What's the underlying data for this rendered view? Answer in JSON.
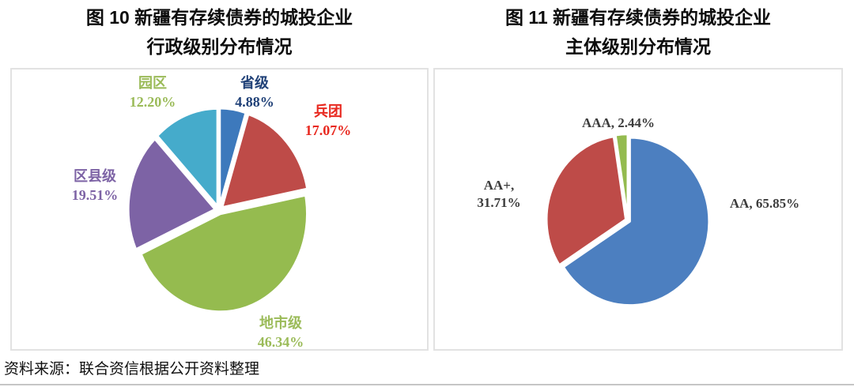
{
  "page": {
    "source": "资料来源：联合资信根据公开资料整理"
  },
  "charts": [
    {
      "title_line1": "图 10 新疆有存续债券的城投企业",
      "title_line2": "行政级别分布情况",
      "callouts": [
        {
          "line1": "园区",
          "line2": "12.20%",
          "color": "#9bbb59"
        },
        {
          "line1": "省级",
          "line2": "4.88%",
          "color": "#1f4077"
        },
        {
          "line1": "兵团",
          "line2": "17.07%",
          "color": "#e8281f"
        },
        {
          "line1": "区县级",
          "line2": "19.51%",
          "color": "#7d63a5"
        },
        {
          "line1": "地市级",
          "line2": "46.34%",
          "color": "#9bbb59"
        }
      ]
    },
    {
      "title_line1": "图 11 新疆有存续债券的城投企业",
      "title_line2": "主体级别分布情况",
      "callouts": [
        {
          "line1": "AAA, 2.44%",
          "line2": ""
        },
        {
          "line1": "AA+,",
          "line2": "31.71%"
        },
        {
          "line1": "AA, 65.85%",
          "line2": ""
        }
      ]
    }
  ],
  "chart_data": [
    {
      "type": "pie",
      "title": "图 10 新疆有存续债券的城投企业行政级别分布情况",
      "labels": [
        "省级",
        "兵团",
        "地市级",
        "区县级",
        "园区"
      ],
      "values": [
        4.88,
        17.07,
        46.34,
        19.51,
        12.2
      ],
      "colors": [
        "#3d79bc",
        "#be4b48",
        "#95bb4f",
        "#7d63a5",
        "#45abcb"
      ],
      "units": "percent",
      "start_angle_deg": 0,
      "direction": "clockwise",
      "legend": "none",
      "label_style": "callouts-outside"
    },
    {
      "type": "pie",
      "title": "图 11 新疆有存续债券的城投企业主体级别分布情况",
      "labels": [
        "AA",
        "AA+",
        "AAA"
      ],
      "values": [
        65.85,
        31.71,
        2.44
      ],
      "colors": [
        "#4c7fc0",
        "#be4b48",
        "#94bb4f"
      ],
      "units": "percent",
      "start_angle_deg": 0,
      "direction": "clockwise",
      "legend": "none",
      "label_style": "callouts-outside"
    }
  ]
}
